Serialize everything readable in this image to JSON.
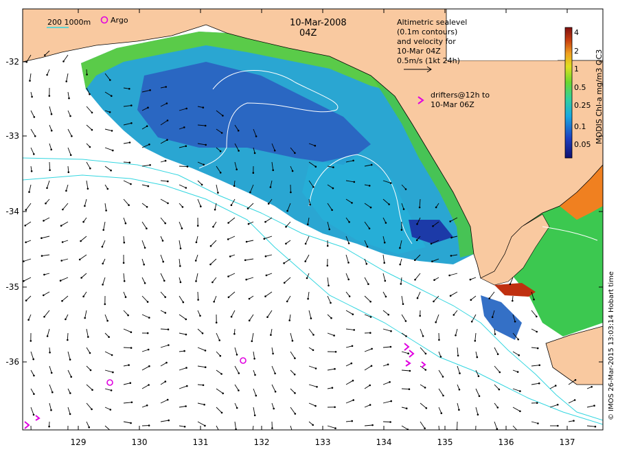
{
  "map": {
    "title_date": "10-Mar-2008",
    "title_time": "04Z",
    "scale_bar_label": "200  1000m",
    "argo_label": "Argo",
    "sealevel_note": [
      "Altimetric sealevel",
      "(0.1m contours)",
      "and velocity for",
      "10-Mar 04Z",
      "0.5m/s (1kt 24h)"
    ],
    "drifters_note": [
      "drifters@12h to",
      "10-Mar 06Z"
    ],
    "drifter_marker": ">",
    "credit": "© IMOS 26-Mar-2015 13:03:14 Hobart time",
    "lon_ticks": [
      {
        "id": "lon-129",
        "label": "129"
      },
      {
        "id": "lon-130",
        "label": "130"
      },
      {
        "id": "lon-131",
        "label": "131"
      },
      {
        "id": "lon-132",
        "label": "132"
      },
      {
        "id": "lon-133",
        "label": "133"
      },
      {
        "id": "lon-134",
        "label": "134"
      },
      {
        "id": "lon-135",
        "label": "135"
      },
      {
        "id": "lon-136",
        "label": "136"
      },
      {
        "id": "lon-137",
        "label": "137"
      }
    ],
    "lat_ticks": [
      {
        "id": "lat-32",
        "label": "-32"
      },
      {
        "id": "lat-33",
        "label": "-33"
      },
      {
        "id": "lat-34",
        "label": "-34"
      },
      {
        "id": "lat-35",
        "label": "-35"
      },
      {
        "id": "lat-36",
        "label": "-36"
      }
    ],
    "colorbar": {
      "title": "MODIS Chl-a mg/m3 OC3",
      "labels": [
        "4",
        "2",
        "1",
        "0.5",
        "0.25",
        "0.1",
        "0.05"
      ]
    },
    "colors": {
      "land": "#f9c9a0",
      "ocean": "#ffffff",
      "argo": "#e000e0",
      "bathymetry": "#33d6e0",
      "chl_low": "#1a3fa8",
      "chl_mid": "#22b5c8",
      "chl_high": "#42c43a",
      "chl_peak": "#c03010"
    }
  }
}
